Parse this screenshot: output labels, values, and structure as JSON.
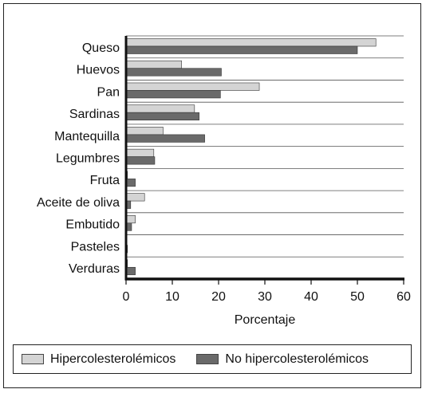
{
  "chart_data": {
    "type": "bar",
    "orientation": "horizontal",
    "categories": [
      "Queso",
      "Huevos",
      "Pan",
      "Sardinas",
      "Mantequilla",
      "Legumbres",
      "Fruta",
      "Aceite de oliva",
      "Embutido",
      "Pasteles",
      "Verduras"
    ],
    "series": [
      {
        "name": "Hipercolesterolémicos",
        "values": [
          54,
          12,
          28.8,
          14.8,
          8,
          6,
          0.3,
          4,
          2,
          0.2,
          0.3
        ],
        "color": "#d4d4d4"
      },
      {
        "name": "No hipercolesterolémicos",
        "values": [
          50,
          20.6,
          20.4,
          15.8,
          17,
          6.2,
          2,
          1,
          1.2,
          0.3,
          2
        ],
        "color": "#6a6a6a"
      }
    ],
    "xlabel": "Porcentaje",
    "xlim": [
      0,
      60
    ],
    "xticks": [
      0,
      10,
      20,
      30,
      40,
      50,
      60
    ],
    "grid": true,
    "legend_position": "bottom"
  }
}
